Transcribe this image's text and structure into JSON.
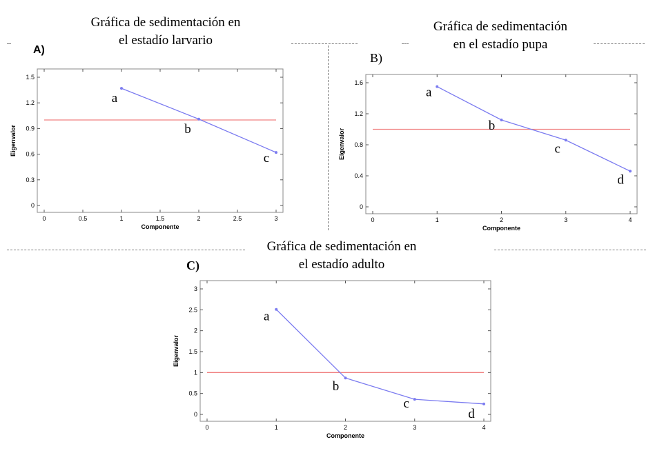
{
  "panels": [
    {
      "label": "A)",
      "title_lines": [
        "Gráfica de sedimentación en",
        "el estadío larvario"
      ]
    },
    {
      "label": "B)",
      "title_lines": [
        "Gráfica de sedimentación",
        "en el estadío pupa"
      ]
    },
    {
      "label": "C)",
      "title_lines": [
        "Gráfica de sedimentación en",
        "el estadío adulto"
      ]
    }
  ],
  "colors": {
    "series": "#7b7bf0",
    "reference": "#f08080",
    "frame": "#888888"
  },
  "chart_data": [
    {
      "type": "line",
      "title": "Gráfica de sedimentación en el estadío larvario",
      "xlabel": "Componente",
      "ylabel": "Eigenvalor",
      "xlim": [
        0,
        3
      ],
      "ylim": [
        0,
        1.5
      ],
      "xticks": [
        "0",
        "0.5",
        "1",
        "1.5",
        "2",
        "2.5",
        "3"
      ],
      "yticks": [
        "0",
        "0.3",
        "0.6",
        "0.9",
        "1.2",
        "1.5"
      ],
      "reference_line": 1,
      "x": [
        1,
        2,
        3
      ],
      "values": [
        1.37,
        1.01,
        0.62
      ],
      "point_labels": [
        "a",
        "b",
        "c"
      ],
      "grid": false
    },
    {
      "type": "line",
      "title": "Gráfica de sedimentación en el estadío pupa",
      "xlabel": "Componente",
      "ylabel": "Eigenvalor",
      "xlim": [
        0,
        4
      ],
      "ylim": [
        0,
        1.6
      ],
      "xticks": [
        "0",
        "1",
        "2",
        "3",
        "4"
      ],
      "yticks": [
        "0",
        "0.4",
        "0.8",
        "1.2",
        "1.6"
      ],
      "reference_line": 1,
      "x": [
        1,
        2,
        3,
        4
      ],
      "values": [
        1.55,
        1.12,
        0.86,
        0.46
      ],
      "point_labels": [
        "a",
        "b",
        "c",
        "d"
      ],
      "grid": false
    },
    {
      "type": "line",
      "title": "Gráfica de sedimentación en el estadío adulto",
      "xlabel": "Componente",
      "ylabel": "Eigenvalor",
      "xlim": [
        0,
        4
      ],
      "ylim": [
        0,
        3
      ],
      "xticks": [
        "0",
        "1",
        "2",
        "3",
        "4"
      ],
      "yticks": [
        "0",
        "0.5",
        "1",
        "1.5",
        "2",
        "2.5",
        "3"
      ],
      "reference_line": 1,
      "x": [
        1,
        2,
        3,
        4
      ],
      "values": [
        2.51,
        0.87,
        0.36,
        0.25
      ],
      "point_labels": [
        "a",
        "b",
        "c",
        "d"
      ],
      "grid": false
    }
  ]
}
